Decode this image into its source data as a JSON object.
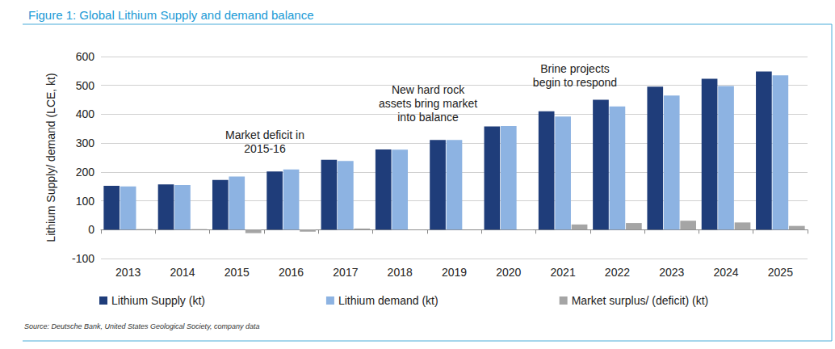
{
  "chart_data": {
    "type": "bar",
    "title": "Figure 1: Global Lithium Supply and demand balance",
    "y_label": "Lithium Supply/ demand (LCE, kt)",
    "source": "Source: Deutsche Bank, United States Geological Society, company data",
    "annotations": [
      "Market deficit in\n2015-16",
      "New hard rock\nassets bring market\ninto balance",
      "Brine projects\nbegin to respond"
    ],
    "categories": [
      "2013",
      "2014",
      "2015",
      "2016",
      "2017",
      "2018",
      "2019",
      "2020",
      "2021",
      "2022",
      "2023",
      "2024",
      "2025"
    ],
    "series": [
      {
        "name": "Lithium Supply (kt)",
        "color": "#1f3d7a",
        "values": [
          152,
          157,
          172,
          202,
          242,
          278,
          311,
          358,
          410,
          450,
          496,
          523,
          548
        ]
      },
      {
        "name": "Lithium demand (kt)",
        "color": "#8db3e2",
        "values": [
          150,
          155,
          184,
          209,
          238,
          277,
          311,
          359,
          392,
          427,
          465,
          498,
          535
        ]
      },
      {
        "name": "Market surplus/ (deficit) (kt)",
        "color": "#a5a5a5",
        "values": [
          2,
          2,
          -12,
          -7,
          4,
          1,
          0,
          -1,
          18,
          23,
          31,
          25,
          13
        ]
      }
    ],
    "ylim": [
      -100,
      600
    ],
    "yticks": [
      -100,
      0,
      100,
      200,
      300,
      400,
      500,
      600
    ],
    "grid": true,
    "legend": "bottom"
  }
}
